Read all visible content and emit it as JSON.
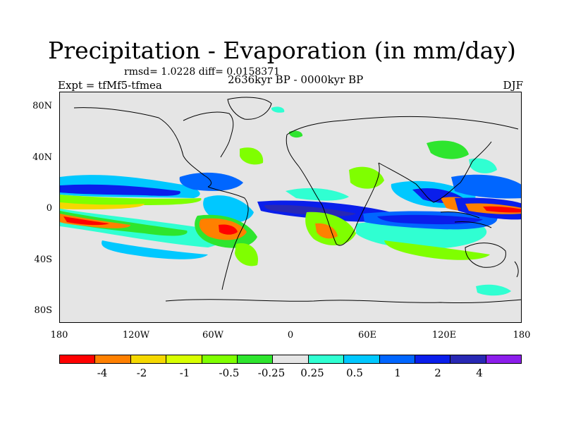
{
  "title": "Precipitation - Evaporation (in mm/day)",
  "stats": "rmsd= 1.0228  diff= 0.0158371",
  "period": "2636kyr BP - 0000kyr BP",
  "experiment": "Expt = tfMf5-tfmea",
  "season": "DJF",
  "lat_labels": [
    "80N",
    "40N",
    "0",
    "40S",
    "80S"
  ],
  "lon_labels": [
    "180",
    "120W",
    "60W",
    "0",
    "60E",
    "120E",
    "180"
  ],
  "colorbar": {
    "colors": [
      "#ff0000",
      "#ff8000",
      "#f5d800",
      "#d8ff00",
      "#7fff00",
      "#2ee52e",
      "#e5e5e5",
      "#30ffd2",
      "#00c8ff",
      "#0066ff",
      "#0a1eeb",
      "#2828b4",
      "#8c1eeb"
    ],
    "labels": [
      "-4",
      "-2",
      "-1",
      "-0.5",
      "-0.25",
      "0.25",
      "0.5",
      "1",
      "2",
      "4"
    ]
  },
  "map": {
    "projection": "cylindrical-equidistant",
    "lon_range": [
      -180,
      180
    ],
    "lat_range": [
      -90,
      90
    ],
    "background_color": "#e5e5e5"
  }
}
